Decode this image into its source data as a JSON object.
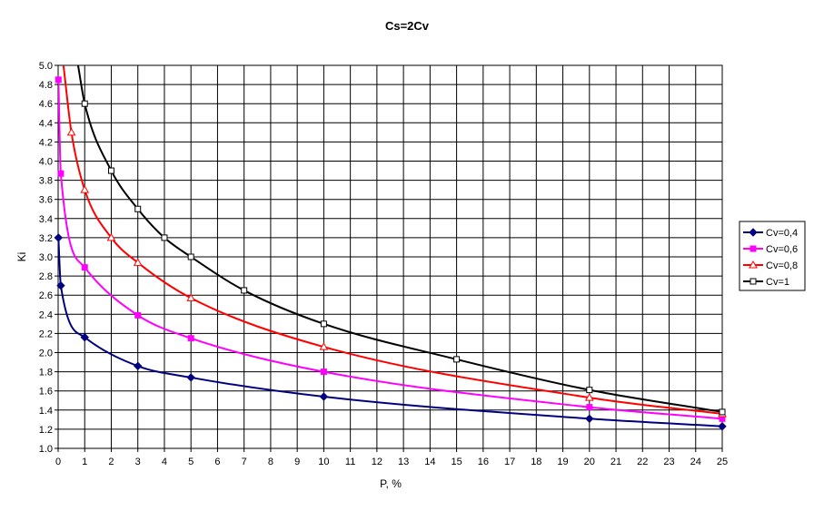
{
  "chart_data": {
    "type": "line",
    "title": "Cs=2Cv",
    "xlabel": "P, %",
    "ylabel": "Ki",
    "xlim": [
      0,
      25
    ],
    "ylim": [
      1.0,
      5.0
    ],
    "x_ticks": [
      "0",
      "1",
      "2",
      "3",
      "4",
      "5",
      "6",
      "7",
      "8",
      "9",
      "10",
      "11",
      "12",
      "13",
      "14",
      "15",
      "16",
      "17",
      "18",
      "19",
      "20",
      "21",
      "22",
      "23",
      "24",
      "25"
    ],
    "y_ticks": [
      "1.0",
      "1.2",
      "1.4",
      "1.6",
      "1.8",
      "2.0",
      "2.2",
      "2.4",
      "2.6",
      "2.8",
      "3.0",
      "3.2",
      "3.4",
      "3.6",
      "3.8",
      "4.0",
      "4.2",
      "4.4",
      "4.6",
      "4.8",
      "5.0"
    ],
    "grid": true,
    "legend_position": "right",
    "series": [
      {
        "name": "Cv=0,4",
        "color": "#000080",
        "marker": "diamond",
        "x": [
          0.01,
          0.1,
          1,
          3,
          5,
          10,
          20,
          25
        ],
        "y": [
          3.2,
          2.7,
          2.16,
          1.86,
          1.74,
          1.54,
          1.31,
          1.23
        ]
      },
      {
        "name": "Cv=0,6",
        "color": "#ff00ff",
        "marker": "square",
        "x": [
          0.01,
          0.1,
          1,
          3,
          5,
          10,
          20,
          25
        ],
        "y": [
          4.85,
          3.87,
          2.89,
          2.39,
          2.15,
          1.8,
          1.43,
          1.31
        ]
      },
      {
        "name": "Cv=0,8",
        "color": "#ff0000",
        "marker": "triangle",
        "x": [
          0.2,
          0.5,
          1,
          2,
          3,
          5,
          10,
          20,
          25
        ],
        "y": [
          5.0,
          4.3,
          3.7,
          3.2,
          2.94,
          2.57,
          2.06,
          1.53,
          1.36
        ]
      },
      {
        "name": "Cv=1",
        "color": "#000000",
        "marker": "open-square",
        "x": [
          0.75,
          1,
          2,
          3,
          4,
          5,
          7,
          10,
          15,
          20,
          25
        ],
        "y": [
          5.0,
          4.6,
          3.9,
          3.5,
          3.2,
          3.0,
          2.65,
          2.3,
          1.93,
          1.61,
          1.38
        ]
      }
    ],
    "marker_points": [
      [
        0,
        3.2,
        0
      ],
      [
        0,
        2.7,
        0.1
      ],
      [
        0,
        2.16,
        1
      ],
      [
        0,
        1.86,
        3
      ],
      [
        0,
        1.74,
        5
      ],
      [
        0,
        1.54,
        10
      ],
      [
        0,
        1.31,
        20
      ],
      [
        0,
        1.23,
        25
      ]
    ]
  }
}
